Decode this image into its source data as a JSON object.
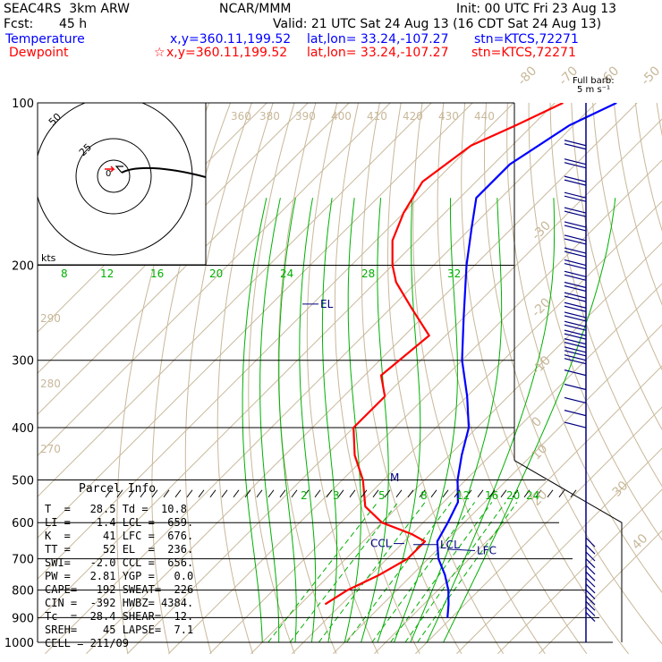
{
  "header": {
    "model": "SEAC4RS  3km ARW",
    "org": "NCAR/MMM",
    "init": "Init: 00 UTC Fri 23 Aug 13",
    "fcst_label": "Fcst:",
    "fcst_value": "45 h",
    "valid": "Valid: 21 UTC Sat 24 Aug 13 (16 CDT Sat 24 Aug 13)",
    "temp_label": "Temperature",
    "temp_xy": "x,y=360.11,199.52",
    "temp_latlon": "lat,lon= 33.24,-107.27",
    "temp_stn": "stn=KTCS,72271",
    "dew_label": "Dewpoint",
    "dew_xy": "x,y=360.11,199.52",
    "dew_latlon": "lat,lon= 33.24,-107.27",
    "dew_stn": "stn=KTCS,72271",
    "barb_label1": "Full barb:",
    "barb_label2": "5 m s⁻¹"
  },
  "chart_data": {
    "type": "line",
    "title": "",
    "pressure_levels": [
      "100",
      "200",
      "300",
      "400",
      "500",
      "600",
      "700",
      "800",
      "900",
      "1000"
    ],
    "isotherm_labels": [
      "-80",
      "-70",
      "-60",
      "-50",
      "-40",
      "-30",
      "-20",
      "-10",
      "0",
      "10",
      "20",
      "30",
      "40"
    ],
    "theta_labels": [
      "360",
      "380",
      "390",
      "400",
      "410",
      "420",
      "430",
      "440",
      "290",
      "280",
      "270"
    ],
    "mixing_ratio_labels_upper": [
      "8",
      "12",
      "16",
      "20",
      "24",
      "28",
      "32"
    ],
    "mixing_ratio_labels_lower": [
      "2",
      "3",
      "5",
      "8",
      "12",
      "16",
      "20",
      "24"
    ],
    "hodograph": {
      "units_label": "kts",
      "ring_labels": [
        "50",
        "25"
      ],
      "center_label": "0"
    },
    "series": [
      {
        "name": "Temperature",
        "color": "#0000ff",
        "points": [
          [
            900,
            29
          ],
          [
            850,
            26
          ],
          [
            800,
            22.5
          ],
          [
            750,
            18
          ],
          [
            700,
            12.5
          ],
          [
            650,
            8
          ],
          [
            600,
            6
          ],
          [
            550,
            3.5
          ],
          [
            500,
            -2
          ],
          [
            450,
            -7
          ],
          [
            400,
            -12
          ],
          [
            350,
            -20
          ],
          [
            300,
            -30
          ],
          [
            250,
            -40
          ],
          [
            200,
            -52
          ],
          [
            170,
            -60
          ],
          [
            150,
            -66
          ],
          [
            130,
            -66
          ],
          [
            110,
            -61
          ],
          [
            100,
            -55
          ]
        ]
      },
      {
        "name": "Dewpoint",
        "color": "#ff0000",
        "points": [
          [
            850,
            -4
          ],
          [
            800,
            -2
          ],
          [
            750,
            2
          ],
          [
            700,
            5
          ],
          [
            650,
            5
          ],
          [
            630,
            0
          ],
          [
            600,
            -10
          ],
          [
            560,
            -18
          ],
          [
            500,
            -25
          ],
          [
            450,
            -33
          ],
          [
            400,
            -40
          ],
          [
            350,
            -40
          ],
          [
            320,
            -46
          ],
          [
            270,
            -44
          ],
          [
            240,
            -55
          ],
          [
            215,
            -65
          ],
          [
            200,
            -70
          ],
          [
            180,
            -76
          ],
          [
            160,
            -80
          ],
          [
            140,
            -83
          ],
          [
            120,
            -80
          ],
          [
            110,
            -74
          ],
          [
            100,
            -68
          ]
        ]
      }
    ],
    "annotations": [
      {
        "label": "EL",
        "pressure": 236
      },
      {
        "label": "M",
        "pressure": 495
      },
      {
        "label": "CCL",
        "pressure": 656
      },
      {
        "label": "LCL",
        "pressure": 659
      },
      {
        "label": "LFC",
        "pressure": 676
      }
    ],
    "wind_barbs_present": true
  },
  "parcel_info": {
    "title": "Parcel Info",
    "rows": [
      "T  =   28.5 Td =  10.8",
      "LI =   -1.4 LCL =  659.",
      "K  =     41 LFC =  676.",
      "TT =     52 EL  =  236.",
      "SWI=   -2.0 CCL =  656.",
      "PW =   2.81 YGP =   0.0",
      "CAPE=   192 SWEAT=  226",
      "CIN =  -392 HWBZ= 4384.",
      "Tc  =  28.4 SHEAR=  12.",
      "SREH=    45 LAPSE=  7.1",
      "CELL = 211/09"
    ]
  }
}
